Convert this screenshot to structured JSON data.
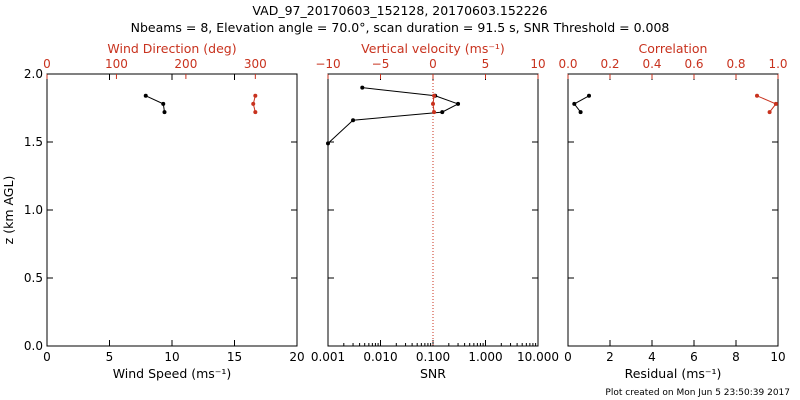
{
  "title": "VAD_97_20170603_152128, 20170603.152226",
  "subtitle": "Nbeams = 8, Elevation angle = 70.0°, scan duration = 91.5 s, SNR Threshold = 0.008",
  "footer": "Plot created on Mon Jun  5 23:50:39 2017",
  "colors": {
    "black": "#000000",
    "red": "#c8321e"
  },
  "chart_data": [
    {
      "type": "line",
      "panel": "left",
      "xlabel": "Wind Speed (ms⁻¹)",
      "x_ticks": [
        "0",
        "5",
        "10",
        "15",
        "20"
      ],
      "xlim": [
        0,
        20
      ],
      "top_xlabel": "Wind Direction (deg)",
      "top_ticks": [
        "0",
        "100",
        "200",
        "300"
      ],
      "top_xlim": [
        0,
        360
      ],
      "ylabel": "z (km AGL)",
      "y_ticks": [
        "0.0",
        "0.5",
        "1.0",
        "1.5",
        "2.0"
      ],
      "ylim": [
        0,
        2
      ],
      "series": [
        {
          "axis": "bottom",
          "color": "#000000",
          "x": [
            7.9,
            9.3,
            9.4
          ],
          "y": [
            1.84,
            1.78,
            1.72
          ]
        },
        {
          "axis": "top",
          "color": "#c8321e",
          "x": [
            300,
            297,
            300
          ],
          "y": [
            1.84,
            1.78,
            1.72
          ]
        }
      ]
    },
    {
      "type": "line",
      "panel": "middle",
      "xlabel": "SNR",
      "x_ticks": [
        "0.001",
        "0.010",
        "0.100",
        "1.000",
        "10.000"
      ],
      "xscale": "log",
      "xlim": [
        0.001,
        10
      ],
      "top_xlabel": "Vertical velocity (ms⁻¹)",
      "top_ticks": [
        "−10",
        "−5",
        "0",
        "5",
        "10"
      ],
      "top_xlim": [
        -10,
        10
      ],
      "ylim": [
        0,
        2
      ],
      "reference_line": {
        "axis": "top",
        "x": 0,
        "style": "dotted",
        "color": "#c8321e"
      },
      "series": [
        {
          "axis": "bottom",
          "color": "#000000",
          "x": [
            0.0045,
            0.11,
            0.3,
            0.15,
            0.003,
            0.001
          ],
          "y": [
            1.9,
            1.84,
            1.78,
            1.72,
            1.66,
            1.49
          ]
        },
        {
          "axis": "top",
          "color": "#c8321e",
          "x": [
            0.1,
            0.0,
            0.1
          ],
          "y": [
            1.84,
            1.78,
            1.72
          ]
        }
      ]
    },
    {
      "type": "line",
      "panel": "right",
      "xlabel": "Residual (ms⁻¹)",
      "x_ticks": [
        "0",
        "2",
        "4",
        "6",
        "8",
        "10"
      ],
      "xlim": [
        0,
        10
      ],
      "top_xlabel": "Correlation",
      "top_ticks": [
        "0.0",
        "0.2",
        "0.4",
        "0.6",
        "0.8",
        "1.0"
      ],
      "top_xlim": [
        0,
        1
      ],
      "ylim": [
        0,
        2
      ],
      "series": [
        {
          "axis": "bottom",
          "color": "#000000",
          "x": [
            1.0,
            0.3,
            0.6
          ],
          "y": [
            1.84,
            1.78,
            1.72
          ]
        },
        {
          "axis": "top",
          "color": "#c8321e",
          "x": [
            0.9,
            0.99,
            0.96
          ],
          "y": [
            1.84,
            1.78,
            1.72
          ]
        }
      ]
    }
  ]
}
